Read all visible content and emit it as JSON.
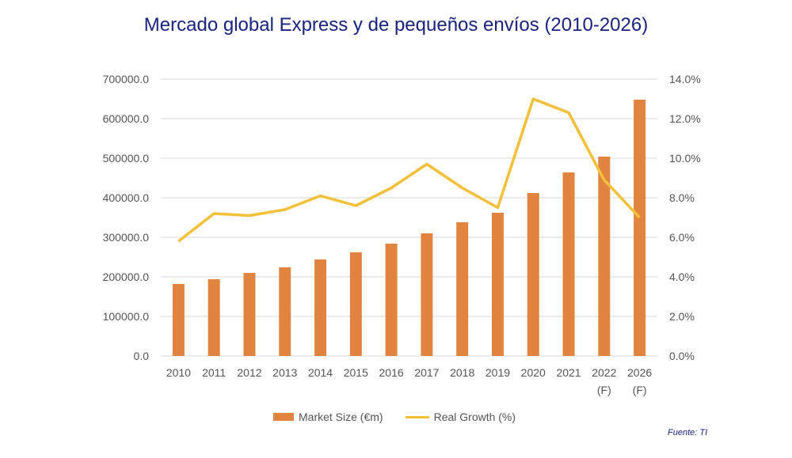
{
  "chart_data": {
    "type": "bar",
    "title": "Mercado global Express y de pequeños envíos (2010-2026)",
    "categories": [
      "2010",
      "2011",
      "2012",
      "2013",
      "2014",
      "2015",
      "2016",
      "2017",
      "2018",
      "2019",
      "2020",
      "2021",
      "2022\n(F)",
      "2026\n(F)"
    ],
    "series": [
      {
        "name": "Market Size (€m)",
        "type": "bar",
        "axis": "left",
        "color": "#e0843f",
        "values": [
          182000,
          194000,
          210000,
          224000,
          244000,
          262000,
          284000,
          310000,
          338000,
          362000,
          412000,
          464000,
          504000,
          648000
        ]
      },
      {
        "name": "Real Growth (%)",
        "type": "line",
        "axis": "right",
        "color": "#f2c03a",
        "values": [
          5.8,
          7.2,
          7.1,
          7.4,
          8.1,
          7.6,
          8.5,
          9.7,
          8.5,
          7.5,
          13.0,
          12.3,
          8.9,
          7.0
        ]
      }
    ],
    "ylim_left": [
      0,
      700000
    ],
    "yticks_left": [
      "0.0",
      "100000.0",
      "200000.0",
      "300000.0",
      "400000.0",
      "500000.0",
      "600000.0",
      "700000.0"
    ],
    "ylim_right": [
      0,
      14
    ],
    "yticks_right": [
      "0.0%",
      "2.0%",
      "4.0%",
      "6.0%",
      "8.0%",
      "10.0%",
      "12.0%",
      "14.0%"
    ],
    "grid": true,
    "legend_placement": "bottom"
  },
  "source": "Fuente: TI"
}
